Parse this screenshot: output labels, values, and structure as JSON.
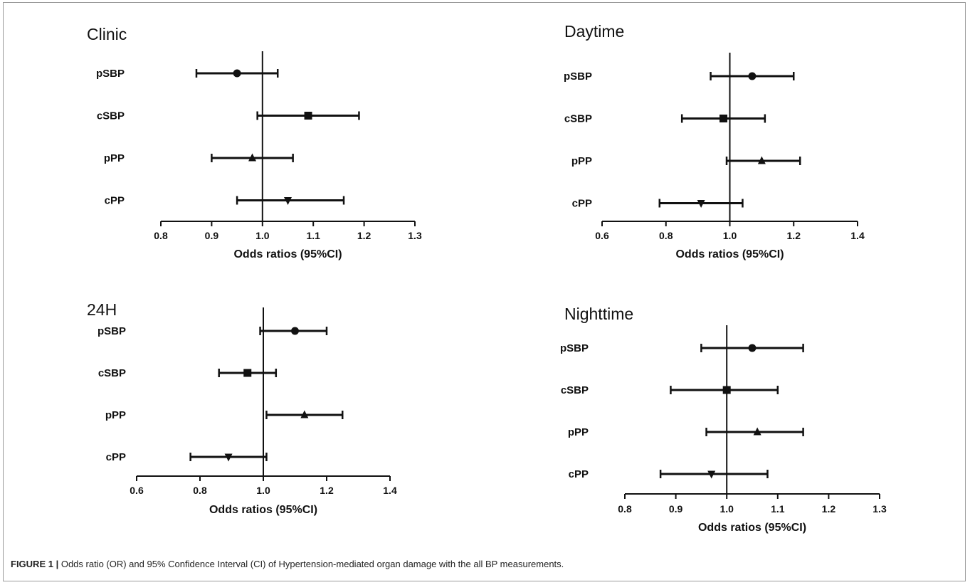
{
  "caption": {
    "label": "FIGURE 1 |",
    "text": "Odds ratio (OR) and 95% Confidence Interval (CI) of Hypertension-mediated organ damage with the all BP measurements."
  },
  "chart_data": [
    {
      "type": "forest",
      "title": "Clinic",
      "xlabel": "Odds ratios (95%CI)",
      "xlim": [
        0.8,
        1.3
      ],
      "xticks": [
        0.8,
        0.9,
        1.0,
        1.1,
        1.2,
        1.3
      ],
      "xtick_labels": [
        "0.8",
        "0.9",
        "1.0",
        "1.1",
        "1.2",
        "1.3"
      ],
      "reference_line": 1.0,
      "rows": [
        {
          "label": "pSBP",
          "or": 0.95,
          "lower": 0.87,
          "upper": 1.03,
          "marker": "circle"
        },
        {
          "label": "cSBP",
          "or": 1.09,
          "lower": 0.99,
          "upper": 1.19,
          "marker": "square"
        },
        {
          "label": "pPP",
          "or": 0.98,
          "lower": 0.9,
          "upper": 1.06,
          "marker": "triangle-up"
        },
        {
          "label": "cPP",
          "or": 1.05,
          "lower": 0.95,
          "upper": 1.16,
          "marker": "triangle-down"
        }
      ]
    },
    {
      "type": "forest",
      "title": "Daytime",
      "xlabel": "Odds ratios (95%CI)",
      "xlim": [
        0.6,
        1.4
      ],
      "xticks": [
        0.6,
        0.8,
        1.0,
        1.2,
        1.4
      ],
      "xtick_labels": [
        "0.6",
        "0.8",
        "1.0",
        "1.2",
        "1.4"
      ],
      "reference_line": 1.0,
      "rows": [
        {
          "label": "pSBP",
          "or": 1.07,
          "lower": 0.94,
          "upper": 1.2,
          "marker": "circle"
        },
        {
          "label": "cSBP",
          "or": 0.98,
          "lower": 0.85,
          "upper": 1.11,
          "marker": "square"
        },
        {
          "label": "pPP",
          "or": 1.1,
          "lower": 0.99,
          "upper": 1.22,
          "marker": "triangle-up"
        },
        {
          "label": "cPP",
          "or": 0.91,
          "lower": 0.78,
          "upper": 1.04,
          "marker": "triangle-down"
        }
      ]
    },
    {
      "type": "forest",
      "title": "24H",
      "xlabel": "Odds ratios (95%CI)",
      "xlim": [
        0.6,
        1.4
      ],
      "xticks": [
        0.6,
        0.8,
        1.0,
        1.2,
        1.4
      ],
      "xtick_labels": [
        "0.6",
        "0.8",
        "1.0",
        "1.2",
        "1.4"
      ],
      "reference_line": 1.0,
      "rows": [
        {
          "label": "pSBP",
          "or": 1.1,
          "lower": 0.99,
          "upper": 1.2,
          "marker": "circle"
        },
        {
          "label": "cSBP",
          "or": 0.95,
          "lower": 0.86,
          "upper": 1.04,
          "marker": "square"
        },
        {
          "label": "pPP",
          "or": 1.13,
          "lower": 1.01,
          "upper": 1.25,
          "marker": "triangle-up"
        },
        {
          "label": "cPP",
          "or": 0.89,
          "lower": 0.77,
          "upper": 1.01,
          "marker": "triangle-down"
        }
      ]
    },
    {
      "type": "forest",
      "title": "Nighttime",
      "xlabel": "Odds ratios (95%CI)",
      "xlim": [
        0.8,
        1.3
      ],
      "xticks": [
        0.8,
        0.9,
        1.0,
        1.1,
        1.2,
        1.3
      ],
      "xtick_labels": [
        "0.8",
        "0.9",
        "1.0",
        "1.1",
        "1.2",
        "1.3"
      ],
      "reference_line": 1.0,
      "rows": [
        {
          "label": "pSBP",
          "or": 1.05,
          "lower": 0.95,
          "upper": 1.15,
          "marker": "circle"
        },
        {
          "label": "cSBP",
          "or": 1.0,
          "lower": 0.89,
          "upper": 1.1,
          "marker": "square"
        },
        {
          "label": "pPP",
          "or": 1.06,
          "lower": 0.96,
          "upper": 1.15,
          "marker": "triangle-up"
        },
        {
          "label": "cPP",
          "or": 0.97,
          "lower": 0.87,
          "upper": 1.08,
          "marker": "triangle-down"
        }
      ]
    }
  ]
}
